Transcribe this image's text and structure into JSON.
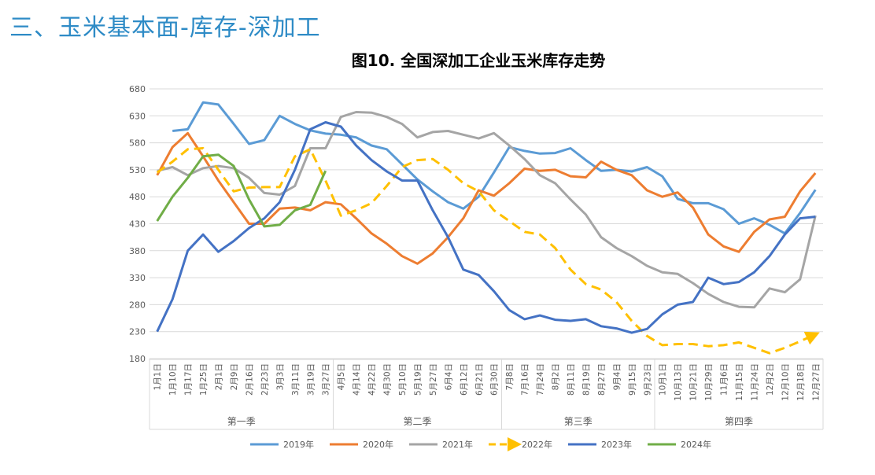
{
  "section_title": "三、玉米基本面-库存-深加工",
  "chart_data": {
    "type": "line",
    "title": "图10. 全国深加工企业玉米库存走势",
    "xlabel": "",
    "ylabel": "",
    "ylim": [
      180,
      680
    ],
    "yticks": [
      180,
      230,
      280,
      330,
      380,
      430,
      480,
      530,
      580,
      630,
      680
    ],
    "grid": true,
    "legend_position": "bottom",
    "categories": [
      "1月1日",
      "1月10日",
      "1月17日",
      "1月25日",
      "2月1日",
      "2月9日",
      "2月16日",
      "2月23日",
      "3月3日",
      "3月11日",
      "3月19日",
      "3月27日",
      "4月5日",
      "4月14日",
      "4月22日",
      "4月30日",
      "5月10日",
      "5月19日",
      "5月27日",
      "6月4日",
      "6月12日",
      "6月21日",
      "6月30日",
      "7月8日",
      "7月16日",
      "7月24日",
      "8月2日",
      "8月11日",
      "8月19日",
      "8月27日",
      "9月4日",
      "9月15日",
      "9月23日",
      "10月1日",
      "10月13日",
      "10月21日",
      "10月29日",
      "11月6日",
      "11月15日",
      "11月24日",
      "12月2日",
      "12月10日",
      "12月18日",
      "12月27日"
    ],
    "groups": [
      {
        "label": "第一季",
        "start": 0,
        "end": 11
      },
      {
        "label": "第二季",
        "start": 12,
        "end": 22
      },
      {
        "label": "第三季",
        "start": 23,
        "end": 32
      },
      {
        "label": "第四季",
        "start": 33,
        "end": 43
      }
    ],
    "series": [
      {
        "name": "2019年",
        "color": "#5b9bd5",
        "dashed": false,
        "values": [
          null,
          602,
          605,
          655,
          651,
          615,
          578,
          585,
          630,
          615,
          603,
          597,
          595,
          590,
          575,
          568,
          540,
          512,
          490,
          470,
          458,
          480,
          525,
          572,
          565,
          560,
          561,
          570,
          548,
          528,
          530,
          527,
          535,
          518,
          476,
          468,
          468,
          457,
          430,
          440,
          428,
          412,
          450,
          493
        ]
      },
      {
        "name": "2020年",
        "color": "#ed7d31",
        "dashed": false,
        "values": [
          520,
          572,
          598,
          555,
          510,
          470,
          430,
          430,
          458,
          460,
          455,
          470,
          466,
          440,
          412,
          393,
          370,
          356,
          375,
          405,
          440,
          492,
          482,
          505,
          532,
          528,
          530,
          518,
          516,
          545,
          530,
          520,
          492,
          480,
          488,
          460,
          410,
          388,
          378,
          415,
          438,
          443,
          490,
          524
        ]
      },
      {
        "name": "2021年",
        "color": "#a5a5a5",
        "dashed": false,
        "values": [
          528,
          535,
          520,
          533,
          537,
          533,
          515,
          487,
          484,
          500,
          570,
          570,
          628,
          637,
          636,
          628,
          615,
          590,
          600,
          602,
          595,
          588,
          598,
          575,
          550,
          520,
          505,
          475,
          447,
          405,
          385,
          370,
          352,
          340,
          337,
          320,
          300,
          285,
          276,
          275,
          310,
          303,
          327,
          445
        ]
      },
      {
        "name": "2022年",
        "color": "#ffc000",
        "dashed": true,
        "values": [
          525,
          545,
          568,
          570,
          530,
          490,
          497,
          498,
          498,
          555,
          568,
          510,
          445,
          455,
          468,
          500,
          535,
          548,
          550,
          530,
          505,
          490,
          455,
          435,
          415,
          410,
          385,
          345,
          318,
          308,
          285,
          250,
          222,
          205,
          207,
          207,
          203,
          205,
          210,
          200,
          190,
          200,
          212,
          225
        ]
      },
      {
        "name": "2023年",
        "color": "#4472c4",
        "dashed": false,
        "values": [
          230,
          290,
          380,
          410,
          378,
          398,
          422,
          440,
          470,
          530,
          605,
          618,
          610,
          575,
          548,
          527,
          510,
          510,
          455,
          405,
          345,
          335,
          305,
          270,
          253,
          260,
          252,
          250,
          253,
          240,
          236,
          228,
          235,
          262,
          280,
          285,
          330,
          318,
          322,
          340,
          370,
          410,
          440,
          443
        ]
      },
      {
        "name": "2024年",
        "color": "#70ad47",
        "dashed": false,
        "values": [
          435,
          480,
          515,
          555,
          558,
          537,
          475,
          425,
          428,
          455,
          465,
          528,
          null,
          null,
          null,
          null,
          null,
          null,
          null,
          null,
          null,
          null,
          null,
          null,
          null,
          null,
          null,
          null,
          null,
          null,
          null,
          null,
          null,
          null,
          null,
          null,
          null,
          null,
          null,
          null,
          null,
          null,
          null,
          null
        ]
      }
    ]
  }
}
